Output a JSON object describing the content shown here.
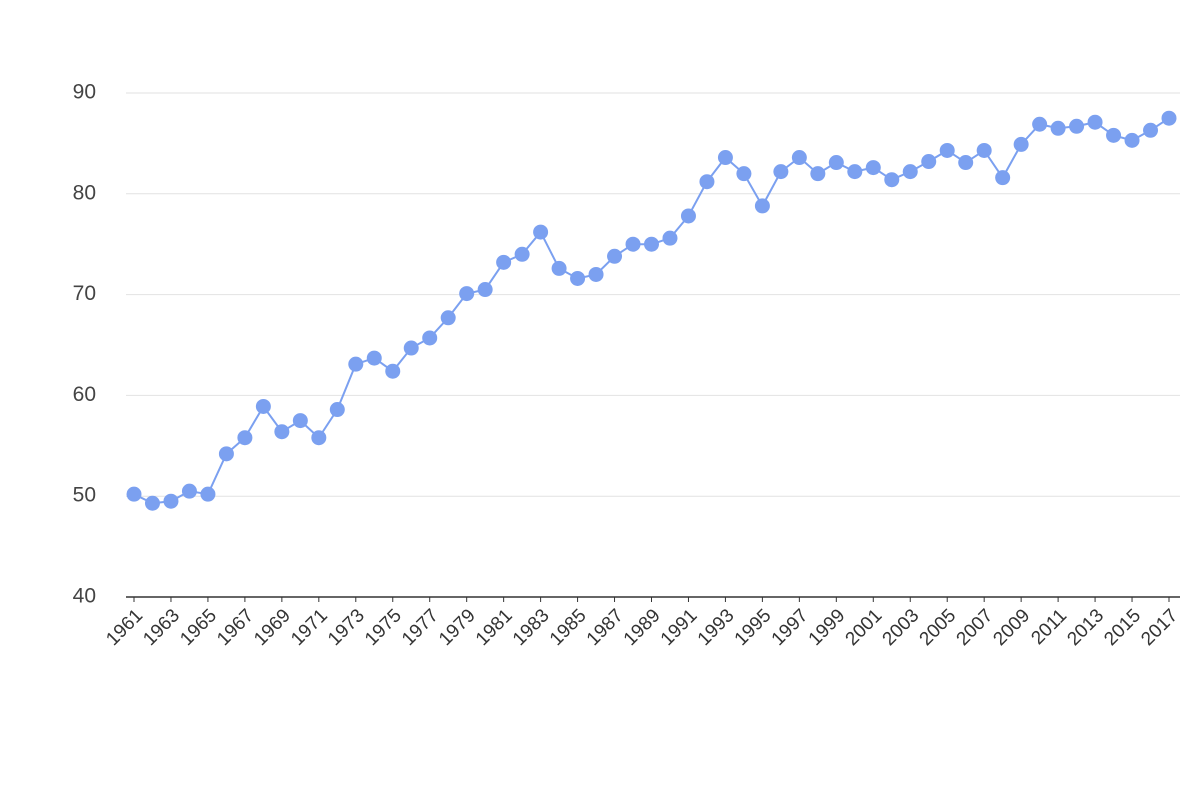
{
  "chart_data": {
    "type": "line",
    "x": [
      1961,
      1962,
      1963,
      1964,
      1965,
      1966,
      1967,
      1968,
      1969,
      1970,
      1971,
      1972,
      1973,
      1974,
      1975,
      1976,
      1977,
      1978,
      1979,
      1980,
      1981,
      1982,
      1983,
      1984,
      1985,
      1986,
      1987,
      1988,
      1989,
      1990,
      1991,
      1992,
      1993,
      1994,
      1995,
      1996,
      1997,
      1998,
      1999,
      2000,
      2001,
      2002,
      2003,
      2004,
      2005,
      2006,
      2007,
      2008,
      2009,
      2010,
      2011,
      2012,
      2013,
      2014,
      2015,
      2016,
      2017
    ],
    "values": [
      50.2,
      49.3,
      49.5,
      50.5,
      50.2,
      54.2,
      55.8,
      58.9,
      56.4,
      57.5,
      55.8,
      58.6,
      63.1,
      63.7,
      62.4,
      64.7,
      65.7,
      67.7,
      70.1,
      70.5,
      73.2,
      74.0,
      76.2,
      72.6,
      71.6,
      72.0,
      73.8,
      75.0,
      75.0,
      75.6,
      77.8,
      81.2,
      83.6,
      82.0,
      78.8,
      82.2,
      83.6,
      82.0,
      83.1,
      82.2,
      82.6,
      81.4,
      82.2,
      83.2,
      84.3,
      83.1,
      84.3,
      81.6,
      84.9,
      86.9,
      86.5,
      86.7,
      87.1,
      85.8,
      85.3,
      86.3,
      87.5
    ],
    "color": "#7ba0f0",
    "xlim": [
      1961,
      2017
    ],
    "xticks": [
      1961,
      1963,
      1965,
      1967,
      1969,
      1971,
      1973,
      1975,
      1977,
      1979,
      1981,
      1983,
      1985,
      1987,
      1989,
      1991,
      1993,
      1995,
      1997,
      1999,
      2001,
      2003,
      2005,
      2007,
      2009,
      2011,
      2013,
      2015,
      2017
    ],
    "ylim": [
      40,
      90
    ],
    "yticks": [
      40,
      50,
      60,
      70,
      80,
      90
    ],
    "grid": true
  }
}
